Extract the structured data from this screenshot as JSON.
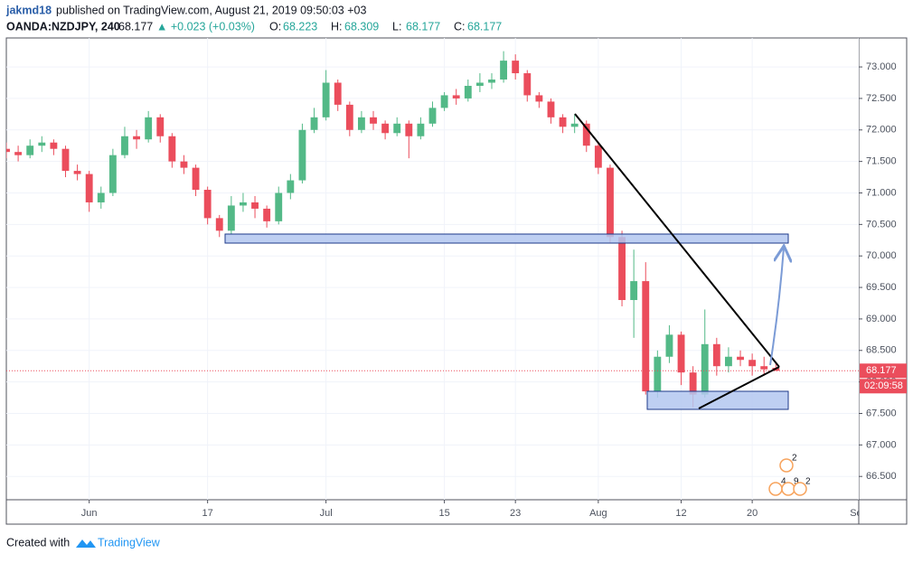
{
  "header": {
    "author": "jakmd18",
    "published": "published on TradingView.com, August 21, 2019 09:50:03 +03",
    "symbol": "OANDA:NZDJPY, 240",
    "last": "68.177",
    "change": "▲ +0.023 (+0.03%)",
    "ohlc": [
      {
        "label": "O:",
        "value": "68.223"
      },
      {
        "label": "H:",
        "value": "68.309"
      },
      {
        "label": "L:",
        "value": "68.177"
      },
      {
        "label": "C:",
        "value": "68.177"
      }
    ]
  },
  "chart_data": {
    "type": "candlestick",
    "x": [
      -7,
      -6,
      -5,
      -4,
      -3,
      -2,
      -1,
      0,
      1,
      2,
      3,
      4,
      5,
      6,
      7,
      8,
      9,
      10,
      11,
      12,
      13,
      14,
      15,
      16,
      17,
      18,
      19,
      20,
      21,
      22,
      23,
      24,
      25,
      26,
      27,
      28,
      29,
      30,
      31,
      32,
      33,
      34,
      35,
      36,
      37,
      38,
      39,
      40,
      41,
      42,
      43,
      44,
      45,
      46,
      47,
      48,
      49,
      50,
      51,
      52,
      53,
      54,
      55,
      56,
      57,
      58
    ],
    "open": [
      71.7,
      71.65,
      71.6,
      71.75,
      71.8,
      71.7,
      71.35,
      71.3,
      70.85,
      71.0,
      71.6,
      71.9,
      71.85,
      72.2,
      71.9,
      71.5,
      71.4,
      71.05,
      70.6,
      70.4,
      70.8,
      70.85,
      70.75,
      70.55,
      71.0,
      71.2,
      72.0,
      72.2,
      72.75,
      72.4,
      72.0,
      72.2,
      72.1,
      71.95,
      72.1,
      71.9,
      72.1,
      72.35,
      72.55,
      72.5,
      72.7,
      72.75,
      72.8,
      73.1,
      72.9,
      72.55,
      72.45,
      72.2,
      72.05,
      72.1,
      71.75,
      71.4,
      70.3,
      69.3,
      69.6,
      67.85,
      68.4,
      68.75,
      68.15,
      67.8,
      68.6,
      68.25,
      68.4,
      68.35,
      68.25,
      68.223
    ],
    "high": [
      71.8,
      71.75,
      71.85,
      71.9,
      71.85,
      71.75,
      71.45,
      71.35,
      71.1,
      71.7,
      72.05,
      72.0,
      72.3,
      72.25,
      71.95,
      71.6,
      71.45,
      71.1,
      70.65,
      70.95,
      71.0,
      70.95,
      70.8,
      71.1,
      71.3,
      72.1,
      72.35,
      72.95,
      72.8,
      72.45,
      72.3,
      72.3,
      72.15,
      72.2,
      72.15,
      72.2,
      72.45,
      72.6,
      72.65,
      72.8,
      72.9,
      72.9,
      73.25,
      73.2,
      72.95,
      72.6,
      72.5,
      72.25,
      72.25,
      72.15,
      71.8,
      71.45,
      70.4,
      70.1,
      69.9,
      68.5,
      68.9,
      68.8,
      68.25,
      69.15,
      68.7,
      68.55,
      68.5,
      68.45,
      68.4,
      68.309
    ],
    "low": [
      71.55,
      71.5,
      71.55,
      71.65,
      71.6,
      71.25,
      71.2,
      70.7,
      70.75,
      70.95,
      71.55,
      71.7,
      71.8,
      71.8,
      71.4,
      71.3,
      70.95,
      70.5,
      70.3,
      70.35,
      70.7,
      70.6,
      70.45,
      70.5,
      70.9,
      71.15,
      71.95,
      72.15,
      72.3,
      71.9,
      71.95,
      72.0,
      71.85,
      71.9,
      71.55,
      71.85,
      72.05,
      72.3,
      72.4,
      72.45,
      72.6,
      72.65,
      72.75,
      72.8,
      72.45,
      72.35,
      72.1,
      71.95,
      71.95,
      71.65,
      71.3,
      70.2,
      69.2,
      68.7,
      67.8,
      67.75,
      68.3,
      67.95,
      67.6,
      67.75,
      68.1,
      68.15,
      68.25,
      68.1,
      68.1,
      68.177
    ],
    "close": [
      71.65,
      71.6,
      71.75,
      71.8,
      71.7,
      71.35,
      71.3,
      70.85,
      71.0,
      71.6,
      71.9,
      71.85,
      72.2,
      71.9,
      71.5,
      71.4,
      71.05,
      70.6,
      70.4,
      70.8,
      70.85,
      70.75,
      70.55,
      71.0,
      71.2,
      72.0,
      72.2,
      72.75,
      72.4,
      72.0,
      72.2,
      72.1,
      71.95,
      72.1,
      71.9,
      72.1,
      72.35,
      72.55,
      72.5,
      72.7,
      72.75,
      72.8,
      73.1,
      72.9,
      72.55,
      72.45,
      72.2,
      72.05,
      72.1,
      71.75,
      71.4,
      70.3,
      69.3,
      69.6,
      67.85,
      68.4,
      68.75,
      68.15,
      67.8,
      68.6,
      68.25,
      68.4,
      68.35,
      68.25,
      68.2,
      68.177
    ],
    "up_color": "#53b987",
    "down_color": "#eb4d5c",
    "xlim": [
      -7,
      65
    ],
    "xticks": [
      {
        "value": 0,
        "label": "Jun"
      },
      {
        "value": 10,
        "label": "17"
      },
      {
        "value": 20,
        "label": "Jul"
      },
      {
        "value": 30,
        "label": "15"
      },
      {
        "value": 36,
        "label": "23"
      },
      {
        "value": 43,
        "label": "Aug"
      },
      {
        "value": 50,
        "label": "12"
      },
      {
        "value": 56,
        "label": "20"
      },
      {
        "value": 65,
        "label": "Sep"
      }
    ],
    "ylim": [
      66.13,
      73.46
    ],
    "yticks": [
      {
        "value": 66.5,
        "label": "66.500"
      },
      {
        "value": 67,
        "label": "67.000"
      },
      {
        "value": 67.5,
        "label": "67.500"
      },
      {
        "value": 68,
        "label": "68.000"
      },
      {
        "value": 68.5,
        "label": "68.500"
      },
      {
        "value": 69,
        "label": "69.000"
      },
      {
        "value": 69.5,
        "label": "69.500"
      },
      {
        "value": 70,
        "label": "70.000"
      },
      {
        "value": 70.5,
        "label": "70.500"
      },
      {
        "value": 71,
        "label": "71.000"
      },
      {
        "value": 71.5,
        "label": "71.500"
      },
      {
        "value": 72,
        "label": "72.000"
      },
      {
        "value": 72.5,
        "label": "72.500"
      },
      {
        "value": 73,
        "label": "73.000"
      }
    ],
    "grid": true,
    "last_price": 68.177,
    "countdown": "02:09:58",
    "event_badges": [
      "2",
      "4",
      "9",
      "2"
    ]
  },
  "footer": {
    "prefix": "Created with",
    "brand": "TradingView"
  }
}
